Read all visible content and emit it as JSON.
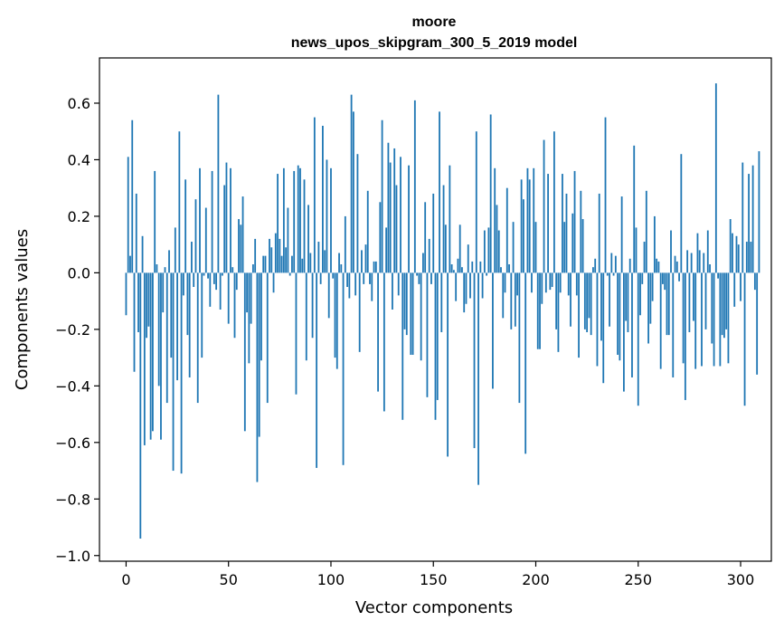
{
  "chart_data": {
    "type": "bar",
    "title": "moore",
    "subtitle": "news_upos_skipgram_300_5_2019 model",
    "xlabel": "Vector components",
    "ylabel": "Components values",
    "xlim": [
      -13,
      315
    ],
    "ylim": [
      -1.02,
      0.76
    ],
    "xticks": [
      0,
      50,
      100,
      150,
      200,
      250,
      300
    ],
    "xtick_labels": [
      "0",
      "50",
      "100",
      "150",
      "200",
      "250",
      "300"
    ],
    "yticks": [
      -1.0,
      -0.8,
      -0.6,
      -0.4,
      -0.2,
      0.0,
      0.2,
      0.4,
      0.6
    ],
    "ytick_labels": [
      "−1.0",
      "−0.8",
      "−0.6",
      "−0.4",
      "−0.2",
      "0.0",
      "0.2",
      "0.4",
      "0.6"
    ],
    "bar_color": "#1f77b4",
    "grid": false,
    "values": [
      -0.15,
      0.41,
      0.06,
      0.54,
      -0.35,
      0.28,
      -0.21,
      -0.94,
      0.13,
      -0.61,
      -0.23,
      -0.19,
      -0.59,
      -0.56,
      0.36,
      0.03,
      -0.4,
      -0.59,
      -0.14,
      0.02,
      -0.46,
      0.08,
      -0.3,
      -0.7,
      0.16,
      -0.38,
      0.5,
      -0.71,
      -0.08,
      0.33,
      -0.22,
      -0.37,
      0.11,
      -0.05,
      0.26,
      -0.46,
      0.37,
      -0.3,
      -0.01,
      0.23,
      -0.02,
      -0.12,
      0.36,
      -0.04,
      -0.06,
      0.63,
      -0.13,
      -0.01,
      0.31,
      0.39,
      -0.18,
      0.37,
      0.02,
      -0.23,
      -0.06,
      0.19,
      0.17,
      0.27,
      -0.56,
      -0.14,
      -0.32,
      -0.18,
      0.03,
      0.12,
      -0.74,
      -0.58,
      -0.31,
      0.06,
      0.06,
      -0.46,
      0.12,
      0.09,
      -0.07,
      0.14,
      0.35,
      0.12,
      0.06,
      0.37,
      0.09,
      0.23,
      -0.01,
      0.06,
      0.36,
      -0.43,
      0.38,
      0.37,
      0.05,
      0.33,
      -0.31,
      0.24,
      0.07,
      -0.23,
      0.55,
      -0.69,
      0.11,
      -0.04,
      0.52,
      0.08,
      0.4,
      -0.16,
      0.37,
      -0.02,
      -0.3,
      -0.34,
      0.07,
      0.03,
      -0.68,
      0.2,
      -0.05,
      -0.09,
      0.63,
      0.57,
      -0.08,
      0.42,
      -0.28,
      0.08,
      -0.04,
      0.1,
      0.29,
      -0.04,
      -0.1,
      0.04,
      0.04,
      -0.42,
      0.25,
      0.54,
      -0.49,
      0.16,
      0.46,
      0.39,
      -0.13,
      0.44,
      0.31,
      -0.08,
      0.41,
      -0.52,
      -0.2,
      -0.22,
      0.38,
      -0.29,
      -0.29,
      0.61,
      -0.01,
      -0.04,
      -0.31,
      0.07,
      0.25,
      -0.44,
      0.12,
      -0.04,
      0.28,
      -0.52,
      -0.45,
      0.57,
      -0.21,
      0.31,
      0.17,
      -0.65,
      0.38,
      0.03,
      0.01,
      -0.1,
      0.05,
      0.17,
      0.02,
      -0.14,
      -0.11,
      0.1,
      -0.09,
      0.04,
      -0.62,
      0.5,
      -0.75,
      0.04,
      -0.09,
      0.15,
      -0.01,
      0.16,
      0.56,
      -0.41,
      0.37,
      0.24,
      0.15,
      0.02,
      -0.16,
      -0.07,
      0.3,
      0.03,
      -0.2,
      0.18,
      -0.19,
      -0.08,
      -0.46,
      0.33,
      0.26,
      -0.64,
      0.37,
      0.33,
      -0.07,
      0.37,
      0.18,
      -0.27,
      -0.27,
      -0.11,
      0.47,
      -0.07,
      0.35,
      -0.06,
      -0.05,
      0.5,
      -0.2,
      -0.28,
      -0.07,
      0.35,
      0.18,
      0.28,
      -0.08,
      -0.19,
      0.21,
      0.36,
      -0.08,
      -0.3,
      0.29,
      0.19,
      -0.2,
      -0.21,
      -0.16,
      -0.22,
      0.02,
      0.05,
      -0.33,
      0.28,
      -0.24,
      -0.39,
      0.55,
      -0.01,
      -0.19,
      0.07,
      -0.01,
      0.06,
      -0.29,
      -0.31,
      0.27,
      -0.42,
      -0.17,
      -0.21,
      0.05,
      -0.37,
      0.45,
      0.16,
      -0.47,
      -0.15,
      -0.04,
      0.11,
      0.29,
      -0.25,
      -0.18,
      -0.1,
      0.2,
      0.05,
      0.04,
      -0.34,
      -0.04,
      -0.06,
      -0.22,
      -0.22,
      0.15,
      -0.37,
      0.06,
      0.04,
      -0.03,
      0.42,
      -0.32,
      -0.45,
      0.08,
      -0.21,
      0.07,
      -0.17,
      -0.34,
      0.14,
      0.08,
      -0.33,
      0.07,
      -0.2,
      0.15,
      0.03,
      -0.25,
      -0.33,
      0.67,
      -0.02,
      -0.33,
      -0.22,
      -0.23,
      -0.2,
      -0.32,
      0.19,
      0.14,
      -0.12,
      0.13,
      0.1,
      -0.1,
      0.39,
      -0.47,
      0.11,
      0.35,
      0.11,
      0.38,
      -0.06,
      -0.36,
      0.43
    ]
  }
}
